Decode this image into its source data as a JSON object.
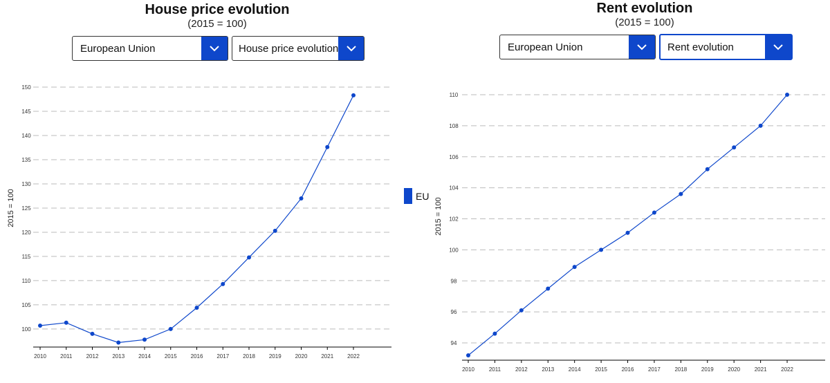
{
  "colors": {
    "accent": "#0e47cb",
    "grid": "#bbbbbb",
    "axis": "#000000"
  },
  "legend": {
    "label": "EU",
    "color": "#0e47cb"
  },
  "left_panel": {
    "title": "House price evolution",
    "subtitle": "(2015 = 100)",
    "region_select": {
      "value": "European Union",
      "icon": "chevron-down-icon"
    },
    "indicator_select": {
      "value": "House price evolution",
      "icon": "chevron-down-icon"
    }
  },
  "right_panel": {
    "title": "Rent evolution",
    "subtitle": "(2015 = 100)",
    "region_select": {
      "value": "European Union",
      "icon": "chevron-down-icon"
    },
    "indicator_select": {
      "value": "Rent evolution",
      "icon": "chevron-down-icon"
    }
  },
  "chart_data": [
    {
      "type": "line",
      "title": "House price evolution",
      "subtitle": "(2015 = 100)",
      "xlabel": "",
      "ylabel": "2015 = 100",
      "categories": [
        "2010",
        "2011",
        "2012",
        "2013",
        "2014",
        "2015",
        "2016",
        "2017",
        "2018",
        "2019",
        "2020",
        "2021",
        "2022"
      ],
      "series": [
        {
          "name": "EU",
          "values": [
            100.7,
            101.3,
            99.0,
            97.2,
            97.8,
            100.0,
            104.4,
            109.3,
            114.8,
            120.3,
            127.0,
            137.6,
            148.3
          ]
        }
      ],
      "yticks": [
        100,
        105,
        110,
        115,
        120,
        125,
        130,
        135,
        140,
        145,
        150
      ],
      "ylim": [
        97.2,
        150
      ],
      "grid": true,
      "legend": "right"
    },
    {
      "type": "line",
      "title": "Rent evolution",
      "subtitle": "(2015 = 100)",
      "xlabel": "",
      "ylabel": "2015 = 100",
      "categories": [
        "2010",
        "2011",
        "2012",
        "2013",
        "2014",
        "2015",
        "2016",
        "2017",
        "2018",
        "2019",
        "2020",
        "2021",
        "2022"
      ],
      "series": [
        {
          "name": "EU",
          "values": [
            93.2,
            94.6,
            96.1,
            97.5,
            98.9,
            100.0,
            101.1,
            102.4,
            103.6,
            105.2,
            106.6,
            108.0,
            110.0
          ]
        }
      ],
      "yticks": [
        94,
        96,
        98,
        100,
        102,
        104,
        106,
        108,
        110
      ],
      "ylim": [
        93.2,
        110
      ],
      "grid": true,
      "legend": "none"
    }
  ]
}
